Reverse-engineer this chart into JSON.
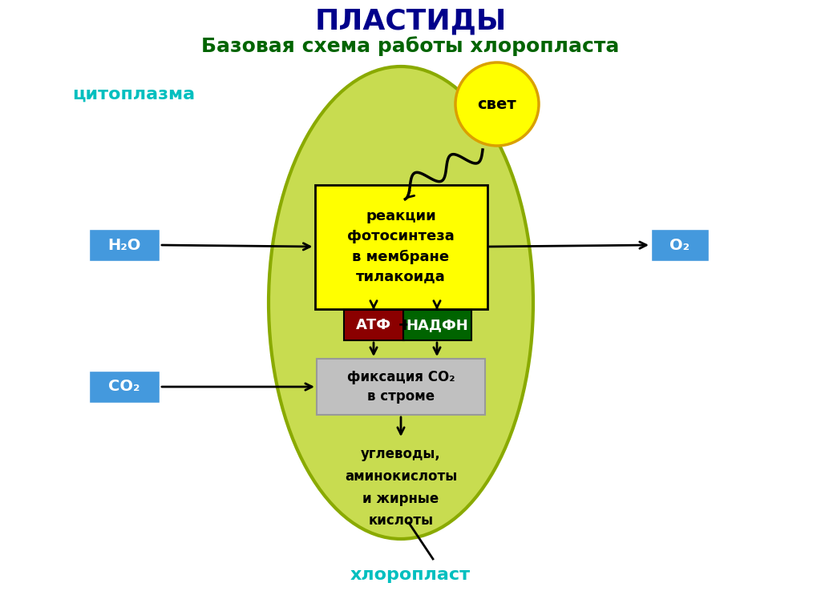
{
  "title": "ПЛАСТИДЫ",
  "subtitle": "Базовая схема работы хлоропласта",
  "title_color": "#00008B",
  "subtitle_color": "#006400",
  "cytoplasm_label": "цитоплазма",
  "cytoplasm_color": "#00BFBF",
  "chloroplast_label": "хлоропласт",
  "chloroplast_color": "#00BFBF",
  "ellipse_color": "#C8DC50",
  "ellipse_edge_color": "#8AAA00",
  "sun_color": "#FFFF00",
  "sun_edge_color": "#DAA000",
  "sun_label": "свет",
  "h2o_label": "H₂O",
  "o2_label": "O₂",
  "co2_label": "CO₂",
  "box_blue_color": "#4499DD",
  "thylakoid_box_color": "#FFFF00",
  "thylakoid_box_edge": "#888800",
  "thylakoid_label": "реакции\nфотосинтеза\nв мембране\nтилакоида",
  "atf_box_color": "#8B0000",
  "atf_label": "АТФ",
  "nadfh_box_color": "#006400",
  "nadfh_label": "НАДФН",
  "fixation_box_color": "#C0C0C0",
  "fixation_label": "фиксация CO₂\nв строме",
  "products_label": "углеводы,\nаминокислоты\nи жирные\nкислоты",
  "bg_color": "#FFFFFF"
}
